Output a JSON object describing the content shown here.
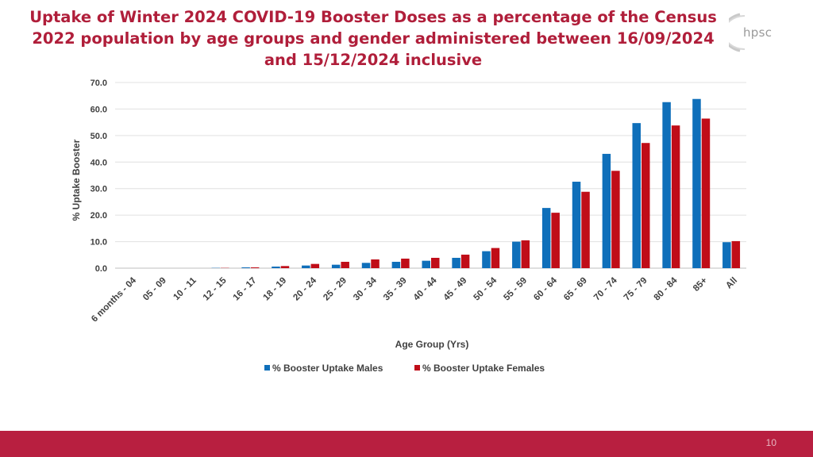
{
  "title": "Uptake of Winter 2024 COVID-19 Booster Doses as a percentage of the Census 2022 population by age groups and gender administered between 16/09/2024 and 15/12/2024 inclusive",
  "logo_text": "hpsc",
  "page_number": "10",
  "colors": {
    "title": "#b01e3a",
    "males": "#0f6fba",
    "females": "#c00d18",
    "footer": "#b81f40",
    "grid": "#e0e0e0"
  },
  "chart_data": {
    "type": "bar",
    "title": "Uptake of Winter 2024 COVID-19 Booster Doses as a percentage of the Census 2022 population by age groups and gender administered between 16/09/2024 and 15/12/2024 inclusive",
    "xlabel": "Age Group (Yrs)",
    "ylabel": "% Uptake Booster",
    "ylim": [
      0,
      70
    ],
    "yticks": [
      "0.0",
      "10.0",
      "20.0",
      "30.0",
      "40.0",
      "50.0",
      "60.0",
      "70.0"
    ],
    "grid": true,
    "legend_position": "bottom",
    "categories": [
      "6 months - 04",
      "05 - 09",
      "10 - 11",
      "12 - 15",
      "16 - 17",
      "18 - 19",
      "20 - 24",
      "25 - 29",
      "30 - 34",
      "35 - 39",
      "40 - 44",
      "45 - 49",
      "50 - 54",
      "55 - 59",
      "60 - 64",
      "65 - 69",
      "70 - 74",
      "75 - 79",
      "80 - 84",
      "85+",
      "All"
    ],
    "series": [
      {
        "name": "% Booster Uptake Males",
        "values": [
          0.0,
          0.0,
          0.0,
          0.1,
          0.3,
          0.6,
          1.0,
          1.3,
          2.0,
          2.4,
          2.8,
          3.9,
          6.4,
          10.0,
          22.7,
          32.6,
          43.1,
          54.7,
          62.6,
          63.8,
          9.8
        ]
      },
      {
        "name": "% Booster Uptake Females",
        "values": [
          0.0,
          0.0,
          0.0,
          0.1,
          0.3,
          0.8,
          1.6,
          2.4,
          3.3,
          3.6,
          3.9,
          5.1,
          7.6,
          10.5,
          20.9,
          28.8,
          36.7,
          47.2,
          53.8,
          56.4,
          10.2
        ]
      }
    ]
  }
}
